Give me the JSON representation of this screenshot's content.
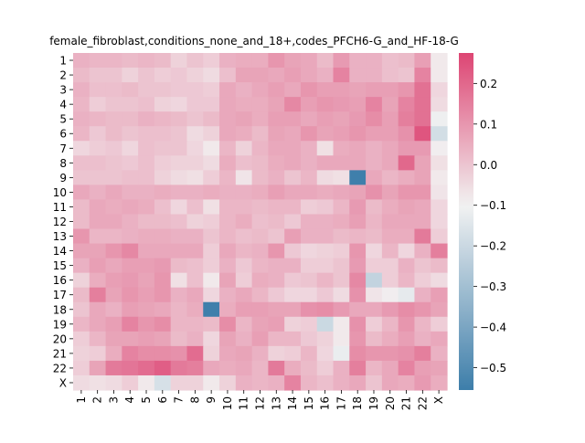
{
  "chart_data": {
    "type": "heatmap",
    "title": "female_fibroblast,conditions_none_and_18+,codes_PFCH6-G_and_HF-18-G",
    "xlabel": "",
    "ylabel": "",
    "x_categories": [
      "1",
      "2",
      "3",
      "4",
      "5",
      "6",
      "7",
      "8",
      "9",
      "10",
      "11",
      "12",
      "13",
      "14",
      "15",
      "16",
      "17",
      "18",
      "19",
      "20",
      "21",
      "22",
      "X"
    ],
    "y_categories": [
      "1",
      "2",
      "3",
      "4",
      "5",
      "6",
      "7",
      "8",
      "9",
      "10",
      "11",
      "12",
      "13",
      "14",
      "15",
      "16",
      "17",
      "18",
      "19",
      "20",
      "21",
      "22",
      "X"
    ],
    "colorscale": {
      "vmin": -0.555,
      "vmax": 0.275,
      "center": -0.1,
      "low_color": "#3d7eaa",
      "mid_color": "#f2f2f2",
      "high_color": "#dd4573",
      "ticks": [
        0.2,
        0.1,
        0.0,
        -0.1,
        -0.2,
        -0.3,
        -0.4,
        -0.5
      ],
      "tick_labels": [
        "0.2",
        "0.1",
        "0.0",
        "−0.1",
        "−0.2",
        "−0.3",
        "−0.4",
        "−0.5"
      ]
    },
    "values": [
      [
        0.04,
        0.03,
        0.03,
        0.02,
        0.03,
        0.02,
        -0.03,
        0.0,
        -0.02,
        0.04,
        0.05,
        0.05,
        0.1,
        0.07,
        0.06,
        0.02,
        0.09,
        0.04,
        0.04,
        0.01,
        0.02,
        0.08,
        -0.08
      ],
      [
        0.02,
        0.0,
        0.0,
        -0.03,
        0.0,
        -0.02,
        -0.01,
        -0.03,
        -0.05,
        0.01,
        0.07,
        0.07,
        0.06,
        0.08,
        0.06,
        0.04,
        0.14,
        0.04,
        0.04,
        0.01,
        0.0,
        0.14,
        -0.08
      ],
      [
        0.04,
        0.01,
        0.01,
        0.02,
        0.0,
        0.0,
        -0.01,
        -0.01,
        -0.02,
        0.06,
        0.04,
        0.06,
        0.08,
        0.06,
        0.1,
        0.08,
        0.08,
        0.07,
        0.08,
        0.08,
        0.1,
        0.18,
        -0.04
      ],
      [
        0.03,
        -0.02,
        0.0,
        0.0,
        0.01,
        -0.03,
        -0.04,
        -0.01,
        -0.01,
        0.06,
        0.05,
        0.05,
        0.07,
        0.13,
        0.08,
        0.1,
        0.09,
        0.08,
        0.14,
        0.07,
        0.14,
        0.18,
        -0.05
      ],
      [
        0.04,
        0.03,
        0.02,
        0.02,
        0.04,
        0.03,
        0.02,
        0.0,
        0.02,
        0.06,
        0.07,
        0.05,
        0.08,
        0.08,
        0.06,
        0.08,
        0.07,
        0.09,
        0.12,
        0.08,
        0.15,
        0.18,
        -0.11
      ],
      [
        0.03,
        -0.01,
        0.02,
        0.0,
        0.01,
        0.01,
        0.0,
        -0.05,
        -0.03,
        0.06,
        0.05,
        0.02,
        0.07,
        0.06,
        0.1,
        0.07,
        0.08,
        0.1,
        0.08,
        0.08,
        0.11,
        0.24,
        -0.18
      ],
      [
        -0.04,
        -0.02,
        -0.01,
        -0.04,
        0.01,
        0.0,
        0.0,
        -0.04,
        -0.08,
        0.03,
        -0.03,
        0.03,
        0.06,
        0.06,
        0.04,
        -0.06,
        0.05,
        0.06,
        0.04,
        0.06,
        0.09,
        0.09,
        -0.09
      ],
      [
        0.01,
        0.01,
        0.0,
        -0.01,
        0.01,
        -0.02,
        -0.03,
        -0.03,
        -0.05,
        0.05,
        0.01,
        0.02,
        0.05,
        0.06,
        0.04,
        0.06,
        0.06,
        0.06,
        0.04,
        0.06,
        0.2,
        0.07,
        -0.06
      ],
      [
        0.0,
        0.0,
        0.0,
        0.01,
        0.01,
        -0.03,
        -0.05,
        -0.06,
        -0.02,
        0.03,
        -0.07,
        0.02,
        0.04,
        0.0,
        0.03,
        -0.05,
        -0.06,
        -0.55,
        0.06,
        0.03,
        0.05,
        0.07,
        -0.08
      ],
      [
        0.06,
        0.04,
        0.06,
        0.04,
        0.04,
        0.05,
        0.04,
        0.04,
        0.05,
        0.04,
        0.04,
        0.05,
        0.08,
        0.06,
        0.06,
        0.05,
        0.06,
        0.07,
        0.11,
        0.07,
        0.1,
        0.1,
        -0.07
      ],
      [
        0.02,
        0.06,
        0.05,
        0.06,
        0.05,
        0.01,
        -0.04,
        0.01,
        -0.06,
        0.03,
        0.03,
        0.02,
        0.03,
        0.03,
        -0.02,
        -0.01,
        0.03,
        0.09,
        0.02,
        0.05,
        0.07,
        0.06,
        -0.04
      ],
      [
        0.02,
        0.06,
        0.06,
        0.04,
        0.02,
        0.02,
        0.01,
        -0.03,
        -0.02,
        0.03,
        0.05,
        0.01,
        0.02,
        -0.01,
        0.04,
        0.04,
        0.05,
        0.08,
        0.03,
        0.06,
        0.06,
        0.06,
        -0.04
      ],
      [
        0.1,
        0.03,
        0.03,
        0.04,
        0.05,
        0.05,
        0.04,
        0.04,
        0.0,
        0.03,
        0.01,
        0.02,
        0.0,
        0.08,
        0.04,
        0.04,
        0.02,
        0.03,
        0.02,
        0.05,
        0.05,
        0.16,
        -0.02
      ],
      [
        0.07,
        0.07,
        0.1,
        0.13,
        0.06,
        0.06,
        0.06,
        0.06,
        -0.02,
        0.06,
        0.03,
        0.04,
        0.1,
        -0.01,
        -0.04,
        -0.03,
        -0.02,
        0.1,
        -0.04,
        0.03,
        -0.04,
        0.04,
        0.15
      ],
      [
        0.04,
        0.08,
        0.06,
        0.08,
        0.08,
        0.09,
        0.02,
        0.01,
        -0.02,
        0.04,
        -0.01,
        0.03,
        0.04,
        0.04,
        -0.02,
        -0.02,
        0.0,
        0.09,
        -0.02,
        -0.02,
        0.04,
        0.0,
        0.02
      ],
      [
        -0.03,
        0.05,
        0.08,
        0.09,
        0.07,
        0.1,
        -0.06,
        0.01,
        -0.08,
        0.07,
        -0.02,
        0.05,
        0.04,
        -0.01,
        0.0,
        0.03,
        0.0,
        0.13,
        -0.22,
        -0.02,
        0.03,
        -0.02,
        -0.05
      ],
      [
        0.02,
        0.15,
        0.07,
        0.1,
        0.08,
        0.1,
        0.04,
        0.06,
        -0.04,
        0.04,
        0.06,
        0.03,
        -0.01,
        -0.04,
        -0.04,
        -0.01,
        -0.05,
        0.11,
        -0.07,
        -0.09,
        -0.13,
        0.04,
        0.08
      ],
      [
        0.0,
        0.06,
        0.04,
        0.08,
        0.07,
        0.06,
        0.03,
        0.05,
        -0.55,
        0.05,
        0.08,
        0.08,
        0.07,
        0.07,
        0.11,
        0.12,
        0.09,
        0.06,
        0.06,
        0.09,
        0.12,
        0.1,
        0.07
      ],
      [
        0.03,
        0.06,
        0.08,
        0.14,
        0.1,
        0.12,
        0.03,
        0.03,
        0.02,
        0.12,
        0.03,
        0.07,
        0.08,
        -0.03,
        -0.02,
        -0.2,
        -0.08,
        0.11,
        -0.02,
        0.03,
        0.1,
        0.03,
        -0.02
      ],
      [
        -0.02,
        0.03,
        0.07,
        0.07,
        0.08,
        0.07,
        0.02,
        0.04,
        -0.04,
        0.07,
        0.04,
        0.08,
        0.03,
        0.03,
        -0.01,
        -0.03,
        -0.08,
        0.1,
        0.02,
        0.05,
        0.08,
        0.04,
        0.06
      ],
      [
        -0.03,
        -0.02,
        0.05,
        0.14,
        0.12,
        0.12,
        0.11,
        0.19,
        -0.03,
        0.06,
        0.07,
        0.04,
        -0.03,
        -0.02,
        0.03,
        -0.04,
        -0.12,
        0.12,
        0.1,
        0.1,
        0.11,
        0.15,
        0.04
      ],
      [
        -0.02,
        0.07,
        0.16,
        0.17,
        0.19,
        0.22,
        0.16,
        0.15,
        0.06,
        0.05,
        0.06,
        0.03,
        0.16,
        0.05,
        0.02,
        -0.02,
        0.04,
        0.15,
        0.03,
        0.06,
        0.14,
        0.08,
        0.07
      ],
      [
        -0.05,
        -0.06,
        -0.05,
        -0.02,
        -0.08,
        -0.17,
        -0.03,
        -0.03,
        -0.08,
        -0.03,
        0.04,
        0.03,
        0.04,
        0.14,
        0.03,
        0.01,
        0.04,
        0.06,
        0.0,
        0.06,
        0.05,
        0.09,
        0.05
      ]
    ]
  }
}
